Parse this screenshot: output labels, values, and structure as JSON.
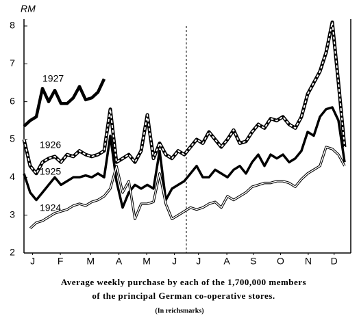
{
  "chart_data": {
    "type": "line",
    "y_label": "RM",
    "title_lines": [
      "Average weekly purchase by each of the 1,700,000 members",
      "of the principal German co-operative stores."
    ],
    "subtitle": "(In reichsmarks)",
    "x": [
      0,
      1,
      2,
      3,
      4,
      5,
      6,
      7,
      8,
      9,
      10,
      11,
      12,
      13,
      14,
      15,
      16,
      17,
      18,
      19,
      20,
      21,
      22,
      23,
      24,
      25,
      26,
      27,
      28,
      29,
      30,
      31,
      32,
      33,
      34,
      35,
      36,
      37,
      38,
      39,
      40,
      41,
      42,
      43,
      44,
      45,
      46,
      47,
      48,
      49,
      50,
      51,
      52
    ],
    "xlim": [
      0,
      53
    ],
    "xticks": [
      {
        "value": 1.4,
        "label": "J"
      },
      {
        "value": 5.9,
        "label": "F"
      },
      {
        "value": 10.8,
        "label": "M"
      },
      {
        "value": 15.4,
        "label": "A"
      },
      {
        "value": 19.9,
        "label": "M"
      },
      {
        "value": 24.4,
        "label": "J"
      },
      {
        "value": 28.3,
        "label": "J"
      },
      {
        "value": 32.9,
        "label": "A"
      },
      {
        "value": 37.2,
        "label": "S"
      },
      {
        "value": 41.6,
        "label": "O"
      },
      {
        "value": 46.1,
        "label": "N"
      },
      {
        "value": 50.3,
        "label": "D"
      }
    ],
    "ylim": [
      2,
      8
    ],
    "yticks": [
      2,
      3,
      4,
      5,
      6,
      7,
      8
    ],
    "series": [
      {
        "name": "1927",
        "color": "#000000",
        "style": "thick",
        "values": [
          5.35,
          5.5,
          5.6,
          6.35,
          6.0,
          6.3,
          5.95,
          5.95,
          6.1,
          6.4,
          6.05,
          6.1,
          6.25,
          6.6,
          null,
          null,
          null,
          null,
          null,
          null,
          null,
          null,
          null,
          null,
          null,
          null,
          null,
          null,
          null,
          null,
          null,
          null,
          null,
          null,
          null,
          null,
          null,
          null,
          null,
          null,
          null,
          null,
          null,
          null,
          null,
          null,
          null,
          null,
          null,
          null,
          null,
          null,
          null
        ]
      },
      {
        "name": "1926",
        "color": "#000000",
        "style": "dashed-double",
        "values": [
          5.0,
          4.3,
          4.1,
          4.4,
          4.5,
          4.55,
          4.4,
          4.6,
          4.55,
          4.7,
          4.6,
          4.55,
          4.6,
          4.7,
          5.8,
          4.4,
          4.5,
          4.6,
          4.4,
          4.7,
          5.65,
          4.5,
          4.9,
          4.6,
          4.5,
          4.7,
          4.6,
          4.8,
          5.0,
          4.9,
          5.2,
          5.0,
          4.8,
          5.0,
          5.25,
          4.9,
          4.95,
          5.2,
          5.4,
          5.3,
          5.55,
          5.5,
          5.6,
          5.4,
          5.3,
          5.6,
          6.2,
          6.5,
          6.8,
          7.3,
          8.1,
          6.5,
          4.8
        ]
      },
      {
        "name": "1925",
        "color": "#000000",
        "style": "medium",
        "values": [
          4.1,
          3.6,
          3.4,
          3.6,
          3.8,
          4.0,
          3.8,
          3.9,
          4.0,
          4.0,
          4.05,
          4.0,
          4.1,
          4.0,
          5.1,
          3.9,
          3.2,
          3.6,
          3.8,
          3.7,
          3.8,
          3.7,
          4.7,
          3.4,
          3.7,
          3.8,
          3.9,
          4.1,
          4.3,
          4.0,
          4.0,
          4.2,
          4.1,
          4.0,
          4.2,
          4.3,
          4.1,
          4.4,
          4.6,
          4.3,
          4.6,
          4.5,
          4.6,
          4.4,
          4.5,
          4.7,
          5.2,
          5.1,
          5.6,
          5.8,
          5.85,
          5.5,
          4.4
        ]
      },
      {
        "name": "1924",
        "color": "#000000",
        "style": "double",
        "values": [
          null,
          2.65,
          2.8,
          2.85,
          2.95,
          3.05,
          3.1,
          3.15,
          3.25,
          3.3,
          3.25,
          3.35,
          3.4,
          3.5,
          3.7,
          4.3,
          3.6,
          3.9,
          2.9,
          3.3,
          3.3,
          3.35,
          4.1,
          3.3,
          2.9,
          3.0,
          3.1,
          3.2,
          3.15,
          3.2,
          3.3,
          3.35,
          3.2,
          3.5,
          3.4,
          3.5,
          3.6,
          3.75,
          3.8,
          3.85,
          3.85,
          3.9,
          3.9,
          3.85,
          3.75,
          3.95,
          4.1,
          4.2,
          4.3,
          4.8,
          4.75,
          4.6,
          4.3
        ]
      }
    ]
  }
}
